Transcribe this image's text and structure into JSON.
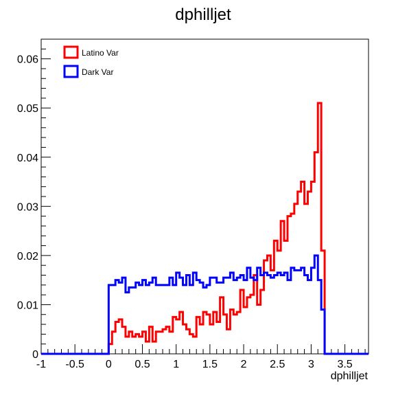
{
  "chart_data": {
    "type": "line",
    "step": true,
    "title": "dphilljet",
    "xlabel": "dphilljet",
    "ylabel": "",
    "xlim": [
      -1,
      3.85
    ],
    "ylim": [
      0,
      0.064
    ],
    "x_ticks": [
      -1,
      -0.5,
      0,
      0.5,
      1,
      1.5,
      2,
      2.5,
      3,
      3.5
    ],
    "x_tick_labels": [
      "-1",
      "-0.5",
      "0",
      "0.5",
      "1",
      "1.5",
      "2",
      "2.5",
      "3",
      "3.5"
    ],
    "y_ticks": [
      0,
      0.01,
      0.02,
      0.03,
      0.04,
      0.05,
      0.06
    ],
    "y_tick_labels": [
      "0",
      "0.01",
      "0.02",
      "0.03",
      "0.04",
      "0.05",
      "0.06"
    ],
    "grid": false,
    "legend_position": "top-left",
    "bins": {
      "start": 0,
      "width": 0.05,
      "count": 63
    },
    "series": [
      {
        "name": "Latino Var",
        "color": "#ff0000",
        "values": [
          0.002,
          0.0045,
          0.0065,
          0.007,
          0.0055,
          0.0035,
          0.0045,
          0.0035,
          0.004,
          0.0035,
          0.0045,
          0.0025,
          0.0055,
          0.0025,
          0.0045,
          0.0045,
          0.005,
          0.0055,
          0.0045,
          0.0075,
          0.007,
          0.0085,
          0.006,
          0.005,
          0.004,
          0.0035,
          0.0075,
          0.006,
          0.0085,
          0.008,
          0.006,
          0.0085,
          0.0065,
          0.0115,
          0.008,
          0.005,
          0.009,
          0.008,
          0.0085,
          0.013,
          0.0095,
          0.0115,
          0.012,
          0.016,
          0.01,
          0.013,
          0.019,
          0.02,
          0.017,
          0.023,
          0.021,
          0.027,
          0.023,
          0.028,
          0.0285,
          0.0305,
          0.033,
          0.035,
          0.0305,
          0.033,
          0.035,
          0.041,
          0.051
        ]
      },
      {
        "name": "Dark Var",
        "color": "#0000ff",
        "values": [
          0.014,
          0.014,
          0.015,
          0.0145,
          0.0155,
          0.0125,
          0.0135,
          0.0135,
          0.0145,
          0.014,
          0.015,
          0.014,
          0.0145,
          0.0155,
          0.014,
          0.014,
          0.014,
          0.014,
          0.0155,
          0.014,
          0.0165,
          0.0155,
          0.014,
          0.016,
          0.014,
          0.0165,
          0.015,
          0.0145,
          0.0135,
          0.014,
          0.0155,
          0.0155,
          0.0145,
          0.0145,
          0.0155,
          0.0155,
          0.0165,
          0.015,
          0.0155,
          0.016,
          0.015,
          0.0175,
          0.0155,
          0.015,
          0.0175,
          0.016,
          0.0165,
          0.016,
          0.0155,
          0.016,
          0.0165,
          0.016,
          0.0165,
          0.015,
          0.0175,
          0.017,
          0.017,
          0.0175,
          0.016,
          0.015,
          0.0175,
          0.02,
          0.015
        ]
      }
    ],
    "tail_values": {
      "Latino Var": 0.021,
      "Dark Var": 0.009
    }
  }
}
